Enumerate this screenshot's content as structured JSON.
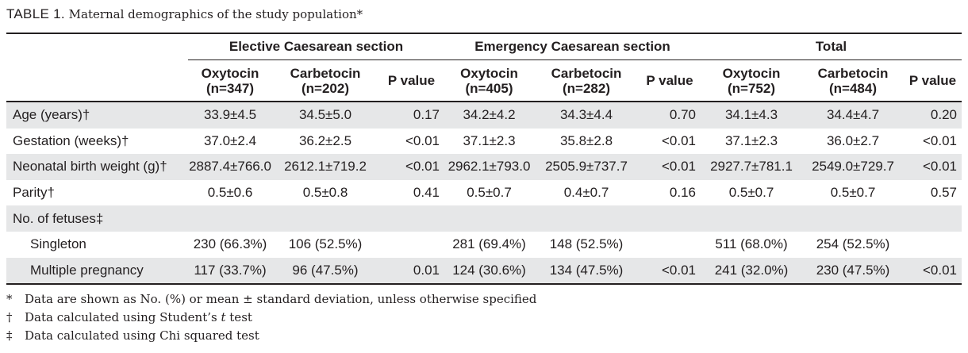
{
  "caption": {
    "label": "TABLE 1.",
    "text": "Maternal demographics of the study population",
    "marker": "*"
  },
  "groups": [
    {
      "label": "Elective Caesarean section"
    },
    {
      "label": "Emergency Caesarean section"
    },
    {
      "label": "Total"
    }
  ],
  "subheaders": [
    {
      "name": "Oxytocin",
      "n": "(n=347)"
    },
    {
      "name": "Carbetocin",
      "n": "(n=202)"
    },
    {
      "name": "P value",
      "n": ""
    },
    {
      "name": "Oxytocin",
      "n": "(n=405)"
    },
    {
      "name": "Carbetocin",
      "n": "(n=282)"
    },
    {
      "name": "P value",
      "n": ""
    },
    {
      "name": "Oxytocin",
      "n": "(n=752)"
    },
    {
      "name": "Carbetocin",
      "n": "(n=484)"
    },
    {
      "name": "P value",
      "n": ""
    }
  ],
  "rows": [
    {
      "label": "Age (years)†",
      "cells": [
        "33.9±4.5",
        "34.5±5.0",
        "0.17",
        "34.2±4.2",
        "34.3±4.4",
        "0.70",
        "34.1±4.3",
        "34.4±4.7",
        "0.20"
      ]
    },
    {
      "label": "Gestation (weeks)†",
      "cells": [
        "37.0±2.4",
        "36.2±2.5",
        "<0.01",
        "37.1±2.3",
        "35.8±2.8",
        "<0.01",
        "37.1±2.3",
        "36.0±2.7",
        "<0.01"
      ]
    },
    {
      "label": "Neonatal birth weight (g)†",
      "cells": [
        "2887.4±766.0",
        "2612.1±719.2",
        "<0.01",
        "2962.1±793.0",
        "2505.9±737.7",
        "<0.01",
        "2927.7±781.1",
        "2549.0±729.7",
        "<0.01"
      ]
    },
    {
      "label": "Parity†",
      "cells": [
        "0.5±0.6",
        "0.5±0.8",
        "0.41",
        "0.5±0.7",
        "0.4±0.7",
        "0.16",
        "0.5±0.7",
        "0.5±0.7",
        "0.57"
      ]
    },
    {
      "label": "No. of fetuses‡",
      "cells": [
        "",
        "",
        "",
        "",
        "",
        "",
        "",
        "",
        ""
      ]
    },
    {
      "label": "Singleton",
      "cells": [
        "230 (66.3%)",
        "106 (52.5%)",
        "",
        "281 (69.4%)",
        "148 (52.5%)",
        "",
        "511 (68.0%)",
        "254 (52.5%)",
        ""
      ]
    },
    {
      "label": "Multiple pregnancy",
      "cells": [
        "117 (33.7%)",
        "96 (47.5%)",
        "0.01",
        "124 (30.6%)",
        "134 (47.5%)",
        "<0.01",
        "241 (32.0%)",
        "230 (47.5%)",
        "<0.01"
      ]
    }
  ],
  "footnotes": [
    {
      "symbol": "*",
      "text": "Data are shown as No. (%) or mean ± standard deviation, unless otherwise specified"
    },
    {
      "symbol": "†",
      "text_before": "Data calculated using Student’s ",
      "italic": "t",
      "text_after": " test"
    },
    {
      "symbol": "‡",
      "text": "Data calculated using Chi squared test"
    }
  ]
}
